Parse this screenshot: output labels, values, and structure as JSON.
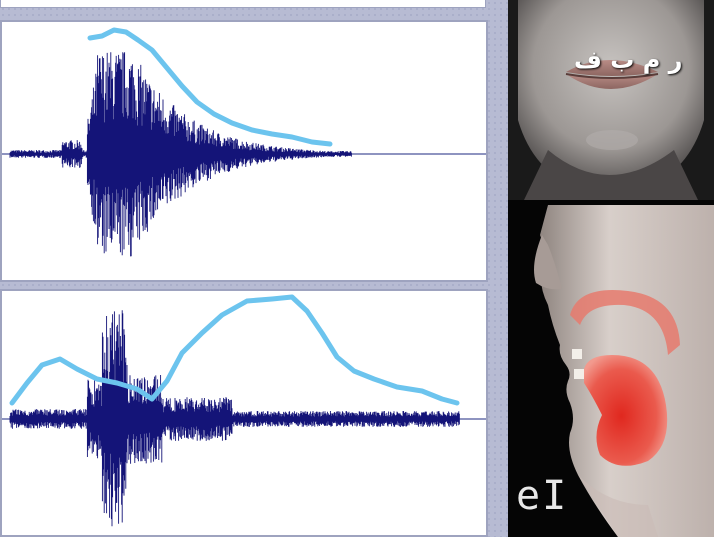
{
  "colors": {
    "waveform": "#141478",
    "envelope": "#6cc4ee",
    "baseline": "#1c2a80",
    "panel_bg": "#ffffff",
    "desktop_bg": "#b7bbd3",
    "articulation_highlight": "#e8473c"
  },
  "overlay": {
    "arabic_letters": "ر م ب ف",
    "phoneme_label": "eI"
  },
  "icons": {
    "front_face": "front-face-image",
    "side_profile": "sagittal-profile-image"
  }
}
